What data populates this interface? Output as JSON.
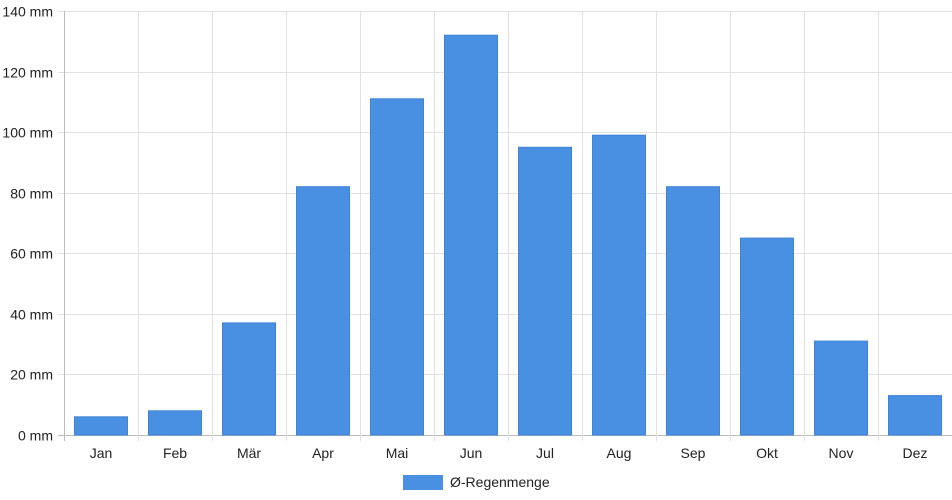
{
  "chart_data": {
    "type": "bar",
    "categories": [
      "Jan",
      "Feb",
      "Mär",
      "Apr",
      "Mai",
      "Jun",
      "Jul",
      "Aug",
      "Sep",
      "Okt",
      "Nov",
      "Dez"
    ],
    "series": [
      {
        "name": "Ø-Regenmenge",
        "values": [
          6,
          8,
          37,
          82,
          111,
          132,
          95,
          99,
          82,
          65,
          31,
          13
        ],
        "color": "#4a90e2"
      }
    ],
    "y_unit": "mm",
    "ylim": [
      0,
      140
    ],
    "y_ticks": [
      0,
      20,
      40,
      60,
      80,
      100,
      120,
      140
    ],
    "y_tick_labels": [
      "0 mm",
      "20 mm",
      "40 mm",
      "60 mm",
      "80 mm",
      "100 mm",
      "120 mm",
      "140 mm"
    ],
    "grid": true,
    "legend_position": "bottom"
  },
  "colors": {
    "bar": "#4a90e2",
    "grid": "#e0e0e0",
    "axis": "#bdbdbd"
  }
}
